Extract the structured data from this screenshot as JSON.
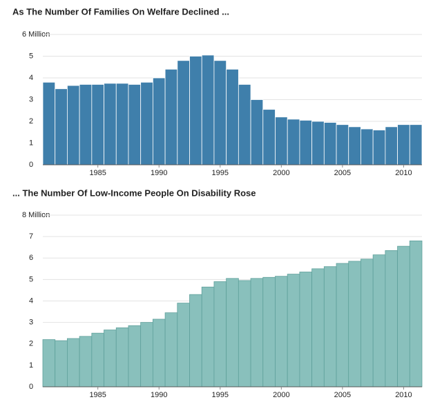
{
  "chart_data": [
    {
      "type": "bar",
      "title": "As The Number Of Families On Welfare Declined ...",
      "x": [
        1981,
        1982,
        1983,
        1984,
        1985,
        1986,
        1987,
        1988,
        1989,
        1990,
        1991,
        1992,
        1993,
        1994,
        1995,
        1996,
        1997,
        1998,
        1999,
        2000,
        2001,
        2002,
        2003,
        2004,
        2005,
        2006,
        2007,
        2008,
        2009,
        2010,
        2011
      ],
      "values": [
        3.8,
        3.5,
        3.65,
        3.7,
        3.7,
        3.75,
        3.75,
        3.7,
        3.8,
        4.0,
        4.4,
        4.8,
        5.0,
        5.05,
        4.8,
        4.4,
        3.7,
        3.0,
        2.55,
        2.2,
        2.1,
        2.05,
        2.0,
        1.95,
        1.85,
        1.75,
        1.65,
        1.6,
        1.75,
        1.85,
        1.85
      ],
      "color": "#3f7fab",
      "xlim": [
        1980.5,
        2011.5
      ],
      "xticks": [
        1985,
        1990,
        1995,
        2000,
        2005,
        2010
      ],
      "ylim": [
        0,
        6
      ],
      "yticks": [
        0,
        1,
        2,
        3,
        4,
        5,
        {
          "value": 6,
          "label": "6 Million"
        }
      ],
      "grid": true
    },
    {
      "type": "bar",
      "title": "... The Number Of Low-Income People On Disability Rose",
      "x": [
        1981,
        1982,
        1983,
        1984,
        1985,
        1986,
        1987,
        1988,
        1989,
        1990,
        1991,
        1992,
        1993,
        1994,
        1995,
        1996,
        1997,
        1998,
        1999,
        2000,
        2001,
        2002,
        2003,
        2004,
        2005,
        2006,
        2007,
        2008,
        2009,
        2010,
        2011
      ],
      "values": [
        2.2,
        2.15,
        2.25,
        2.35,
        2.5,
        2.65,
        2.75,
        2.85,
        3.0,
        3.15,
        3.45,
        3.9,
        4.3,
        4.65,
        4.9,
        5.05,
        4.95,
        5.05,
        5.1,
        5.15,
        5.25,
        5.35,
        5.5,
        5.6,
        5.75,
        5.85,
        5.95,
        6.15,
        6.35,
        6.55,
        6.8
      ],
      "color": "#89c0bc",
      "xlim": [
        1980.5,
        2011.5
      ],
      "xticks": [
        1985,
        1990,
        1995,
        2000,
        2005,
        2010
      ],
      "ylim": [
        0,
        8
      ],
      "yticks": [
        0,
        1,
        2,
        3,
        4,
        5,
        6,
        7,
        {
          "value": 8,
          "label": "8 Million"
        }
      ],
      "grid": true
    }
  ]
}
